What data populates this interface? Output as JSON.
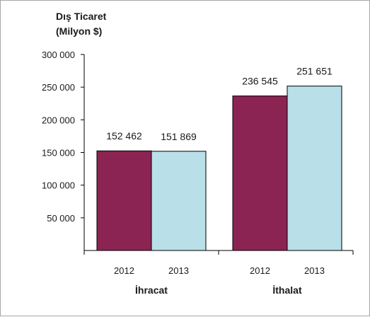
{
  "chart_data": {
    "type": "bar",
    "title": "Dış Ticaret",
    "subtitle": "(Milyon $)",
    "groups": [
      "İhracat",
      "İthalat"
    ],
    "categories": [
      "2012",
      "2013",
      "2012",
      "2013"
    ],
    "values": [
      152462,
      151869,
      236545,
      251651
    ],
    "data_labels": [
      "152 462",
      "151 869",
      "236 545",
      "251 651"
    ],
    "bar_colors": [
      "#8b2452",
      "#b9dfe8",
      "#8b2452",
      "#b9dfe8"
    ],
    "yticks": [
      "300 000",
      "250 000",
      "200 000",
      "150 000",
      "100 000",
      "50 000"
    ],
    "ytick_values": [
      300000,
      250000,
      200000,
      150000,
      100000,
      50000
    ],
    "ylim": [
      0,
      300000
    ],
    "grid": false,
    "legend": "none"
  }
}
